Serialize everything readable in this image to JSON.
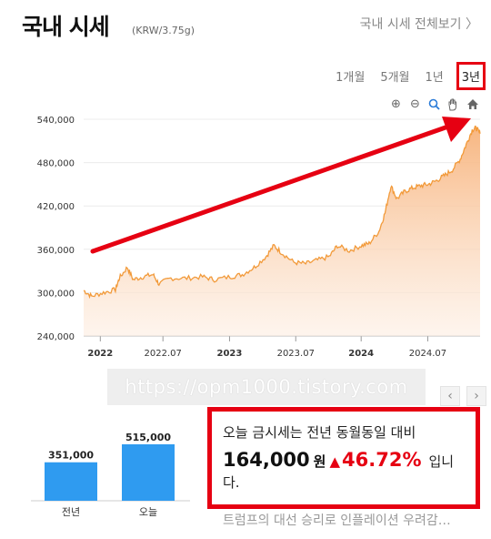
{
  "header": {
    "title": "국내 시세",
    "unit": "(KRW/3.75g)",
    "full_link": "국내 시세 전체보기 〉"
  },
  "periods": [
    {
      "label": "1개월",
      "active": false
    },
    {
      "label": "5개월",
      "active": false
    },
    {
      "label": "1년",
      "active": false
    },
    {
      "label": "3년",
      "active": true
    }
  ],
  "tools": {
    "zoom_in": "⊕",
    "zoom_out": "⊖",
    "zoom_select": "🔍",
    "pan": "✋",
    "home": "⌂"
  },
  "chart_data": {
    "type": "area",
    "y_ticks": [
      "540,000",
      "480,000",
      "420,000",
      "360,000",
      "300,000",
      "240,000"
    ],
    "ylim": [
      240000,
      540000
    ],
    "x_ticks": [
      {
        "label": "2022",
        "bold": true,
        "t": 0.042
      },
      {
        "label": "2022.07",
        "bold": false,
        "t": 0.2
      },
      {
        "label": "2023",
        "bold": true,
        "t": 0.368
      },
      {
        "label": "2023.07",
        "bold": false,
        "t": 0.535
      },
      {
        "label": "2024",
        "bold": true,
        "t": 0.7
      },
      {
        "label": "2024.07",
        "bold": false,
        "t": 0.868
      }
    ],
    "series": [
      {
        "points": [
          [
            0.0,
            303000
          ],
          [
            0.02,
            295000
          ],
          [
            0.05,
            300000
          ],
          [
            0.08,
            304000
          ],
          [
            0.09,
            320000
          ],
          [
            0.11,
            335000
          ],
          [
            0.125,
            318000
          ],
          [
            0.15,
            322000
          ],
          [
            0.175,
            325000
          ],
          [
            0.19,
            312000
          ],
          [
            0.22,
            320000
          ],
          [
            0.26,
            320000
          ],
          [
            0.3,
            322000
          ],
          [
            0.33,
            318000
          ],
          [
            0.37,
            322000
          ],
          [
            0.4,
            325000
          ],
          [
            0.43,
            335000
          ],
          [
            0.46,
            350000
          ],
          [
            0.48,
            365000
          ],
          [
            0.5,
            355000
          ],
          [
            0.53,
            342000
          ],
          [
            0.56,
            340000
          ],
          [
            0.59,
            345000
          ],
          [
            0.62,
            350000
          ],
          [
            0.64,
            365000
          ],
          [
            0.67,
            358000
          ],
          [
            0.7,
            365000
          ],
          [
            0.72,
            368000
          ],
          [
            0.745,
            385000
          ],
          [
            0.76,
            410000
          ],
          [
            0.775,
            448000
          ],
          [
            0.79,
            430000
          ],
          [
            0.81,
            440000
          ],
          [
            0.83,
            445000
          ],
          [
            0.85,
            448000
          ],
          [
            0.87,
            450000
          ],
          [
            0.89,
            455000
          ],
          [
            0.91,
            462000
          ],
          [
            0.93,
            470000
          ],
          [
            0.95,
            485000
          ],
          [
            0.965,
            505000
          ],
          [
            0.98,
            525000
          ],
          [
            0.99,
            528000
          ],
          [
            1.0,
            520000
          ]
        ]
      }
    ],
    "colors": {
      "line": "#f29a3a",
      "fill_top": "#f7b27a",
      "fill_bottom": "#fdeee2"
    }
  },
  "watermark": "https://opm1000.tistory.com",
  "nav": {
    "prev": "‹",
    "next": "›"
  },
  "comparison": {
    "bars": [
      {
        "label": "전년",
        "value": 351000,
        "display": "351,000"
      },
      {
        "label": "오늘",
        "value": 515000,
        "display": "515,000"
      }
    ],
    "color": "#2f9bf0"
  },
  "info": {
    "line1": "오늘 금시세는 전년 동월동일 대비",
    "amount": "164,000",
    "won": "원",
    "arrow": "▲",
    "pct": "46.72%",
    "suffix": "입니",
    "line3": "다."
  },
  "news": "트럼프의 대선 승리로 인플레이션 우려감…",
  "colors": {
    "accent_red": "#e60012"
  }
}
